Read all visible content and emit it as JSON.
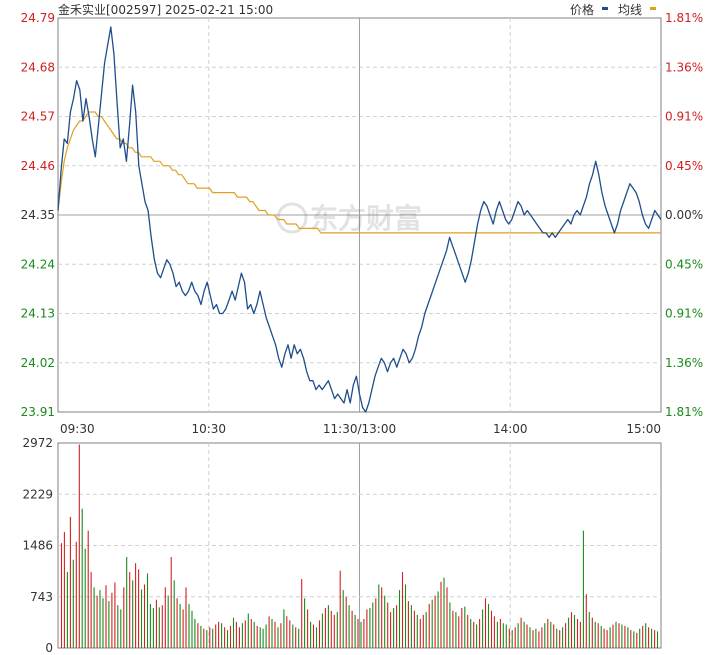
{
  "header": {
    "title": "金禾实业[002597] 2025-02-21 15:00",
    "legend_price": "价格",
    "legend_avg": "均线"
  },
  "watermark": "东方财富",
  "colors": {
    "price_line": "#1f4e8c",
    "avg_line": "#e0a020",
    "up": "#d22020",
    "down": "#1a8a1a",
    "grid": "#d0d0d0",
    "axis": "#808080"
  },
  "chart_data": [
    {
      "type": "line",
      "name": "intraday-price",
      "prev_close": 24.35,
      "ylim": [
        23.91,
        24.79
      ],
      "y_tick_labels": [
        "24.79",
        "24.68",
        "24.57",
        "24.46",
        "24.35",
        "24.24",
        "24.13",
        "24.02",
        "23.91"
      ],
      "pct_tick_labels": [
        "1.81%",
        "1.36%",
        "0.91%",
        "0.45%",
        "0.00%",
        "0.45%",
        "0.91%",
        "1.36%",
        "1.81%"
      ],
      "x_tick_labels": [
        "09:30",
        "10:30",
        "11:30/13:00",
        "14:00",
        "15:00"
      ],
      "series": [
        {
          "name": "价格",
          "values": [
            24.36,
            24.45,
            24.52,
            24.51,
            24.58,
            24.61,
            24.65,
            24.63,
            24.56,
            24.61,
            24.57,
            24.52,
            24.48,
            24.55,
            24.62,
            24.69,
            24.73,
            24.77,
            24.71,
            24.6,
            24.5,
            24.52,
            24.47,
            24.55,
            24.64,
            24.58,
            24.46,
            24.42,
            24.38,
            24.36,
            24.3,
            24.25,
            24.22,
            24.21,
            24.23,
            24.25,
            24.24,
            24.22,
            24.19,
            24.2,
            24.18,
            24.17,
            24.18,
            24.2,
            24.18,
            24.17,
            24.15,
            24.18,
            24.2,
            24.17,
            24.14,
            24.15,
            24.13,
            24.13,
            24.14,
            24.16,
            24.18,
            24.16,
            24.19,
            24.22,
            24.2,
            24.14,
            24.15,
            24.13,
            24.15,
            24.18,
            24.15,
            24.12,
            24.1,
            24.08,
            24.06,
            24.03,
            24.01,
            24.04,
            24.06,
            24.03,
            24.06,
            24.04,
            24.05,
            24.03,
            24.0,
            23.98,
            23.98,
            23.96,
            23.97,
            23.96,
            23.97,
            23.98,
            23.96,
            23.94,
            23.95,
            23.94,
            23.93,
            23.96,
            23.93,
            23.97,
            23.99,
            23.95,
            23.92,
            23.91,
            23.93,
            23.96,
            23.99,
            24.01,
            24.03,
            24.02,
            24.0,
            24.02,
            24.03,
            24.01,
            24.03,
            24.05,
            24.04,
            24.02,
            24.03,
            24.05,
            24.08,
            24.1,
            24.13,
            24.15,
            24.17,
            24.19,
            24.21,
            24.23,
            24.25,
            24.27,
            24.3,
            24.28,
            24.26,
            24.24,
            24.22,
            24.2,
            24.22,
            24.25,
            24.29,
            24.33,
            24.36,
            24.38,
            24.37,
            24.35,
            24.33,
            24.36,
            24.38,
            24.36,
            24.34,
            24.33,
            24.34,
            24.36,
            24.38,
            24.37,
            24.35,
            24.36,
            24.35,
            24.34,
            24.33,
            24.32,
            24.31,
            24.31,
            24.3,
            24.31,
            24.3,
            24.31,
            24.32,
            24.33,
            24.34,
            24.33,
            24.35,
            24.36,
            24.35,
            24.37,
            24.39,
            24.42,
            24.44,
            24.47,
            24.44,
            24.4,
            24.37,
            24.35,
            24.33,
            24.31,
            24.33,
            24.36,
            24.38,
            24.4,
            24.42,
            24.41,
            24.4,
            24.38,
            24.35,
            24.33,
            24.32,
            24.34,
            24.36,
            24.35,
            24.34
          ]
        },
        {
          "name": "均线",
          "values": [
            24.36,
            24.42,
            24.47,
            24.5,
            24.52,
            24.54,
            24.55,
            24.56,
            24.56,
            24.57,
            24.58,
            24.58,
            24.58,
            24.57,
            24.57,
            24.56,
            24.55,
            24.54,
            24.53,
            24.52,
            24.52,
            24.51,
            24.51,
            24.5,
            24.5,
            24.49,
            24.49,
            24.48,
            24.48,
            24.48,
            24.48,
            24.47,
            24.47,
            24.47,
            24.46,
            24.46,
            24.46,
            24.45,
            24.45,
            24.44,
            24.44,
            24.43,
            24.42,
            24.42,
            24.42,
            24.41,
            24.41,
            24.41,
            24.41,
            24.41,
            24.4,
            24.4,
            24.4,
            24.4,
            24.4,
            24.4,
            24.4,
            24.4,
            24.39,
            24.39,
            24.39,
            24.39,
            24.38,
            24.38,
            24.37,
            24.36,
            24.36,
            24.36,
            24.35,
            24.35,
            24.35,
            24.34,
            24.34,
            24.34,
            24.33,
            24.33,
            24.33,
            24.33,
            24.32,
            24.32,
            24.32,
            24.32,
            24.32,
            24.32,
            24.32,
            24.31,
            24.31,
            24.31,
            24.31,
            24.31,
            24.31,
            24.31,
            24.31,
            24.31,
            24.31,
            24.31,
            24.31,
            24.31,
            24.31,
            24.31,
            24.31,
            24.31,
            24.31,
            24.31,
            24.31,
            24.31,
            24.31,
            24.31,
            24.31,
            24.31,
            24.31,
            24.31,
            24.31,
            24.31,
            24.31,
            24.31,
            24.31,
            24.31,
            24.31,
            24.31,
            24.31,
            24.31,
            24.31,
            24.31,
            24.31,
            24.31,
            24.31,
            24.31,
            24.31,
            24.31,
            24.31,
            24.31,
            24.31,
            24.31,
            24.31,
            24.31,
            24.31,
            24.31,
            24.31,
            24.31,
            24.31,
            24.31,
            24.31,
            24.31,
            24.31,
            24.31,
            24.31,
            24.31,
            24.31,
            24.31,
            24.31,
            24.31,
            24.31,
            24.31,
            24.31,
            24.31,
            24.31,
            24.31,
            24.31,
            24.31,
            24.31,
            24.31,
            24.31,
            24.31,
            24.31,
            24.31,
            24.31,
            24.31,
            24.31,
            24.31,
            24.31,
            24.31,
            24.31,
            24.31,
            24.31,
            24.31,
            24.31,
            24.31,
            24.31,
            24.31,
            24.31,
            24.31,
            24.31,
            24.31,
            24.31,
            24.31,
            24.31,
            24.31,
            24.31,
            24.31,
            24.31,
            24.31,
            24.31,
            24.31,
            24.31,
            24.31
          ]
        }
      ]
    },
    {
      "type": "bar",
      "name": "volume",
      "ylim": [
        0,
        2972
      ],
      "y_tick_labels": [
        "2972",
        "2229",
        "1486",
        "743",
        "0"
      ],
      "values": [
        1520,
        1680,
        1100,
        1900,
        1280,
        1540,
        2950,
        2020,
        1440,
        1700,
        1100,
        880,
        760,
        840,
        720,
        910,
        680,
        800,
        950,
        620,
        560,
        880,
        1320,
        1100,
        980,
        1230,
        1140,
        850,
        920,
        1080,
        640,
        580,
        700,
        590,
        620,
        880,
        760,
        1320,
        980,
        720,
        640,
        560,
        880,
        640,
        540,
        420,
        360,
        320,
        280,
        260,
        300,
        280,
        340,
        380,
        360,
        300,
        260,
        320,
        440,
        380,
        300,
        360,
        400,
        500,
        420,
        380,
        320,
        300,
        280,
        340,
        460,
        420,
        380,
        300,
        360,
        560,
        460,
        400,
        340,
        300,
        280,
        1000,
        720,
        560,
        380,
        340,
        300,
        400,
        500,
        580,
        620,
        540,
        480,
        520,
        1120,
        840,
        740,
        620,
        540,
        480,
        420,
        380,
        420,
        560,
        580,
        660,
        720,
        920,
        880,
        760,
        660,
        520,
        580,
        620,
        840,
        1100,
        920,
        680,
        620,
        540,
        480,
        420,
        480,
        520,
        640,
        700,
        760,
        820,
        960,
        1020,
        880,
        660,
        540,
        520,
        460,
        580,
        600,
        480,
        420,
        380,
        340,
        420,
        560,
        720,
        640,
        540,
        460,
        380,
        420,
        360,
        340,
        280,
        260,
        300,
        360,
        440,
        380,
        340,
        300,
        260,
        280,
        240,
        300,
        360,
        420,
        380,
        340,
        280,
        260,
        300,
        360,
        440,
        520,
        480,
        420,
        380,
        1700,
        780,
        520,
        440,
        380,
        360,
        320,
        280,
        260,
        300,
        340,
        380,
        360,
        340,
        320,
        300,
        260,
        240,
        220,
        280,
        320,
        360,
        300,
        280,
        260,
        240
      ],
      "colors_updown": "rrgrgrrggrrgrggrgrrggrgrgrrgrgggrgrrgrgrgrrgggrgrgrgrrgrgrgrrgrgrgrgggrgrgrgrrgrgrgrgrgrgrgrrgrgrgrgrgrrggrgrgrrgrgrgrgrgrrgrgrgrgrgrgrrgrgrgrgrgrrgrggrgrgrgrgrgrrgrgrgrgrgrgrrgrgrgrgrrgrgrgrgrgrgrgrgrgrgrg"
    }
  ]
}
